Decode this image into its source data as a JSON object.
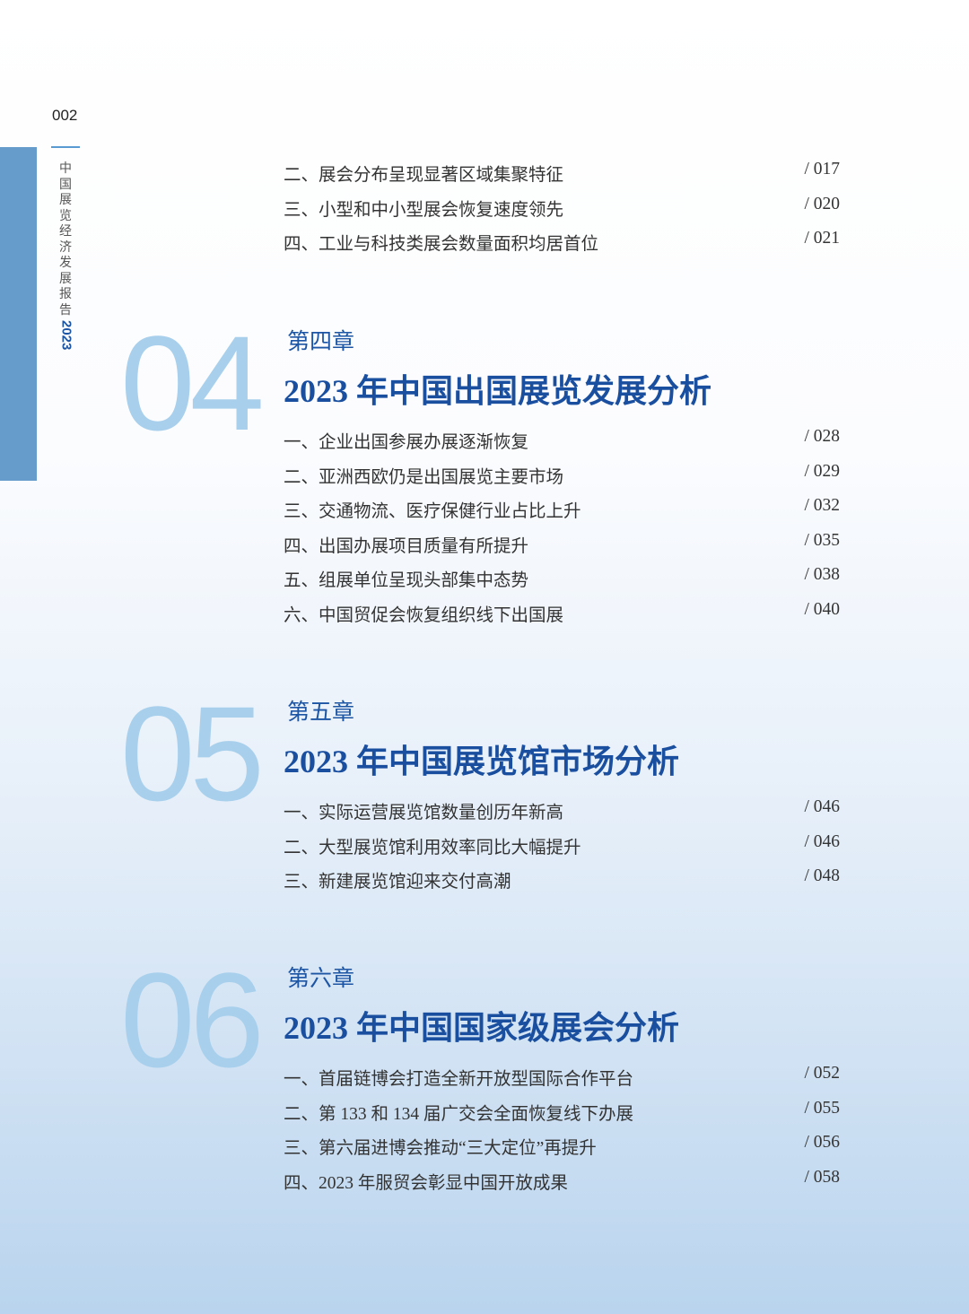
{
  "page_number": "002",
  "running_title": {
    "chars": [
      "中",
      "国",
      "展",
      "览",
      "经",
      "济",
      "发",
      "展",
      "报",
      "告"
    ],
    "year": "2023"
  },
  "intro_items": [
    {
      "title": "二、展会分布呈现显著区域集聚特征",
      "page": "/ 017"
    },
    {
      "title": "三、小型和中小型展会恢复速度领先",
      "page": "/ 020"
    },
    {
      "title": "四、工业与科技类展会数量面积均居首位",
      "page": "/ 021"
    }
  ],
  "chapters": [
    {
      "number": "04",
      "label": "第四章",
      "title": "2023 年中国出国展览发展分析",
      "items": [
        {
          "title": "一、企业出国参展办展逐渐恢复",
          "page": "/ 028"
        },
        {
          "title": "二、亚洲西欧仍是出国展览主要市场",
          "page": "/ 029"
        },
        {
          "title": "三、交通物流、医疗保健行业占比上升",
          "page": "/ 032"
        },
        {
          "title": "四、出国办展项目质量有所提升",
          "page": "/ 035"
        },
        {
          "title": "五、组展单位呈现头部集中态势",
          "page": "/ 038"
        },
        {
          "title": "六、中国贸促会恢复组织线下出国展",
          "page": "/ 040"
        }
      ]
    },
    {
      "number": "05",
      "label": "第五章",
      "title": "2023 年中国展览馆市场分析",
      "items": [
        {
          "title": "一、实际运营展览馆数量创历年新高",
          "page": "/ 046"
        },
        {
          "title": "二、大型展览馆利用效率同比大幅提升",
          "page": "/ 046"
        },
        {
          "title": "三、新建展览馆迎来交付高潮",
          "page": "/ 048"
        }
      ]
    },
    {
      "number": "06",
      "label": "第六章",
      "title": "2023 年中国国家级展会分析",
      "items": [
        {
          "title": "一、首届链博会打造全新开放型国际合作平台",
          "page": "/ 052"
        },
        {
          "title": "二、第 133 和 134 届广交会全面恢复线下办展",
          "page": "/ 055"
        },
        {
          "title": "三、第六届进博会推动“三大定位”再提升",
          "page": "/ 056"
        },
        {
          "title": "四、2023 年服贸会彰显中国开放成果",
          "page": "/ 058"
        }
      ]
    }
  ],
  "colors": {
    "accent": "#1a4fa0",
    "chapter_number": "#a8d0ec",
    "sidebar": "#669ccc"
  }
}
